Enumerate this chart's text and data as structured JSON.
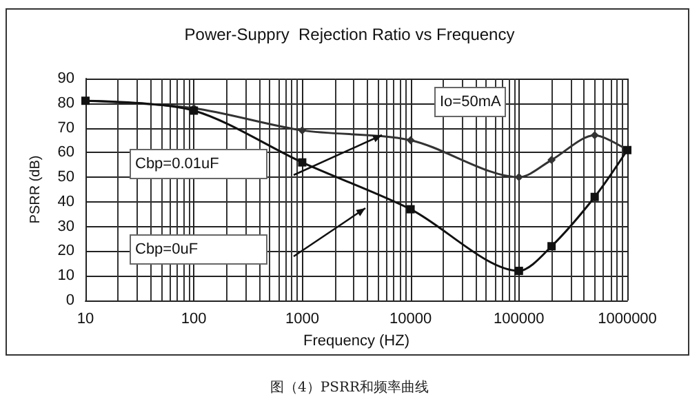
{
  "chart_data": {
    "type": "line",
    "title": "Power-Suppry  Rejection Ratio vs Frequency",
    "xlabel": "Frequency (HZ)",
    "ylabel": "PSRR (dB)",
    "log": "x",
    "grid": true,
    "line_style": "solid",
    "x": [
      10,
      100,
      1000,
      10000,
      100000,
      200000,
      500000,
      1000000
    ],
    "xlim": [
      10,
      1000000
    ],
    "xticks": [
      10,
      100,
      1000,
      10000,
      100000,
      1000000
    ],
    "ylim": [
      0,
      90
    ],
    "yticks": [
      0,
      10,
      20,
      30,
      40,
      50,
      60,
      70,
      80,
      90
    ],
    "series": [
      {
        "color": "#333333",
        "marker": "diamond",
        "values": [
          81,
          78,
          69,
          65,
          50,
          57,
          67,
          61
        ]
      },
      {
        "color": "#111111",
        "marker": "square",
        "values": [
          81,
          77,
          56,
          37,
          12,
          22,
          42,
          61
        ]
      }
    ],
    "annotations": [
      "Cbp=0.01uF",
      "Cbp=0uF",
      "Io=50mA",
      "图（4）PSRR和频率曲线"
    ]
  }
}
